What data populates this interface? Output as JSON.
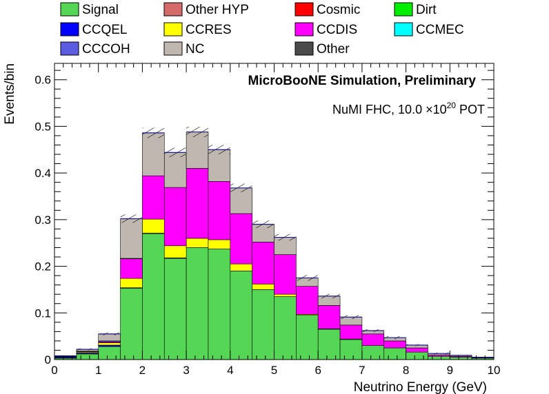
{
  "chart_data": {
    "type": "bar",
    "stacked": true,
    "title": "MicroBooNE Simulation, Preliminary",
    "subtitle": "NuMI FHC, 10.0  ×10",
    "subtitle_exp": "20",
    "subtitle_suffix": " POT",
    "xlabel": "Neutrino Energy (GeV)",
    "ylabel": "Events/bin",
    "xlim": [
      0,
      10
    ],
    "ylim": [
      0,
      0.635
    ],
    "grid": false,
    "legend_position": "top",
    "x_ticks": [
      "0",
      "1",
      "2",
      "3",
      "4",
      "5",
      "6",
      "7",
      "8",
      "9",
      "10"
    ],
    "y_ticks": [
      "0",
      "0.1",
      "0.2",
      "0.3",
      "0.4",
      "0.5",
      "0.6"
    ],
    "y_tick_values": [
      0,
      0.1,
      0.2,
      0.3,
      0.4,
      0.5,
      0.6
    ],
    "bin_edges": [
      0,
      0.5,
      1,
      1.5,
      2,
      2.5,
      3,
      3.5,
      4,
      4.5,
      5,
      5.5,
      6,
      6.5,
      7,
      7.5,
      8,
      8.5,
      9,
      9.5,
      10
    ],
    "legend": [
      {
        "name": "Signal",
        "color": "#55d655"
      },
      {
        "name": "Other HYP",
        "color": "#d46a6a"
      },
      {
        "name": "Cosmic",
        "color": "#ff0000"
      },
      {
        "name": "Dirt",
        "color": "#00ee00"
      },
      {
        "name": "CCQEL",
        "color": "#0000ff"
      },
      {
        "name": "CCRES",
        "color": "#ffff00"
      },
      {
        "name": "CCDIS",
        "color": "#ff00ff"
      },
      {
        "name": "CCMEC",
        "color": "#00ffff"
      },
      {
        "name": "CCCOH",
        "color": "#5c5ce0"
      },
      {
        "name": "NC",
        "color": "#c0b8b0"
      },
      {
        "name": "Other",
        "color": "#4a4a4a"
      }
    ],
    "series": [
      {
        "name": "Signal",
        "color": "#55d655",
        "values": [
          0.003,
          0.012,
          0.028,
          0.153,
          0.27,
          0.217,
          0.24,
          0.237,
          0.19,
          0.15,
          0.135,
          0.095,
          0.065,
          0.043,
          0.03,
          0.025,
          0.016,
          0.007,
          0.005,
          0.003
        ]
      },
      {
        "name": "Other HYP",
        "color": "#d46a6a",
        "values": [
          0,
          0,
          0,
          0,
          0,
          0,
          0,
          0,
          0,
          0,
          0,
          0,
          0,
          0,
          0,
          0,
          0,
          0,
          0,
          0
        ]
      },
      {
        "name": "Cosmic",
        "color": "#ff0000",
        "values": [
          0,
          0,
          0,
          0,
          0,
          0,
          0,
          0,
          0,
          0,
          0,
          0,
          0,
          0,
          0,
          0,
          0,
          0,
          0,
          0
        ]
      },
      {
        "name": "Dirt",
        "color": "#00ee00",
        "values": [
          0,
          0,
          0,
          0,
          0,
          0,
          0,
          0,
          0,
          0,
          0,
          0,
          0,
          0,
          0,
          0,
          0,
          0,
          0,
          0
        ]
      },
      {
        "name": "CCQEL",
        "color": "#0000ff",
        "values": [
          0.002,
          0.002,
          0.003,
          0.001,
          0.001,
          0.001,
          0,
          0,
          0,
          0,
          0,
          0,
          0,
          0,
          0,
          0,
          0,
          0,
          0,
          0
        ]
      },
      {
        "name": "CCRES",
        "color": "#ffff00",
        "values": [
          0.001,
          0.002,
          0.005,
          0.02,
          0.03,
          0.026,
          0.02,
          0.02,
          0.015,
          0.012,
          0.005,
          0.002,
          0.001,
          0.001,
          0,
          0,
          0,
          0,
          0,
          0
        ]
      },
      {
        "name": "CCDIS",
        "color": "#ff00ff",
        "values": [
          0,
          0.001,
          0.002,
          0.042,
          0.093,
          0.125,
          0.15,
          0.125,
          0.108,
          0.09,
          0.085,
          0.06,
          0.05,
          0.03,
          0.025,
          0.015,
          0.009,
          0.003,
          0.002,
          0.001
        ]
      },
      {
        "name": "CCMEC",
        "color": "#00ffff",
        "values": [
          0,
          0,
          0,
          0,
          0,
          0,
          0,
          0,
          0,
          0,
          0,
          0,
          0,
          0,
          0,
          0,
          0,
          0,
          0,
          0
        ]
      },
      {
        "name": "CCCOH",
        "color": "#5c5ce0",
        "values": [
          0.001,
          0.001,
          0.002,
          0.001,
          0,
          0,
          0,
          0,
          0,
          0,
          0,
          0,
          0,
          0,
          0,
          0,
          0,
          0,
          0,
          0
        ]
      },
      {
        "name": "NC",
        "color": "#c0b8b0",
        "values": [
          0.001,
          0.004,
          0.015,
          0.085,
          0.092,
          0.075,
          0.078,
          0.068,
          0.055,
          0.038,
          0.037,
          0.018,
          0.02,
          0.017,
          0.007,
          0.007,
          0.006,
          0.003,
          0.002,
          0.001
        ]
      },
      {
        "name": "Other",
        "color": "#4a4a4a",
        "values": [
          0,
          0,
          0,
          0,
          0,
          0,
          0,
          0,
          0,
          0,
          0,
          0,
          0,
          0,
          0,
          0,
          0,
          0,
          0,
          0
        ]
      }
    ],
    "uncertainty": [
      0.001,
      0.002,
      0.003,
      0.009,
      0.011,
      0.01,
      0.011,
      0.01,
      0.009,
      0.008,
      0.007,
      0.006,
      0.005,
      0.004,
      0.003,
      0.003,
      0.002,
      0.002,
      0.001,
      0.001
    ]
  }
}
